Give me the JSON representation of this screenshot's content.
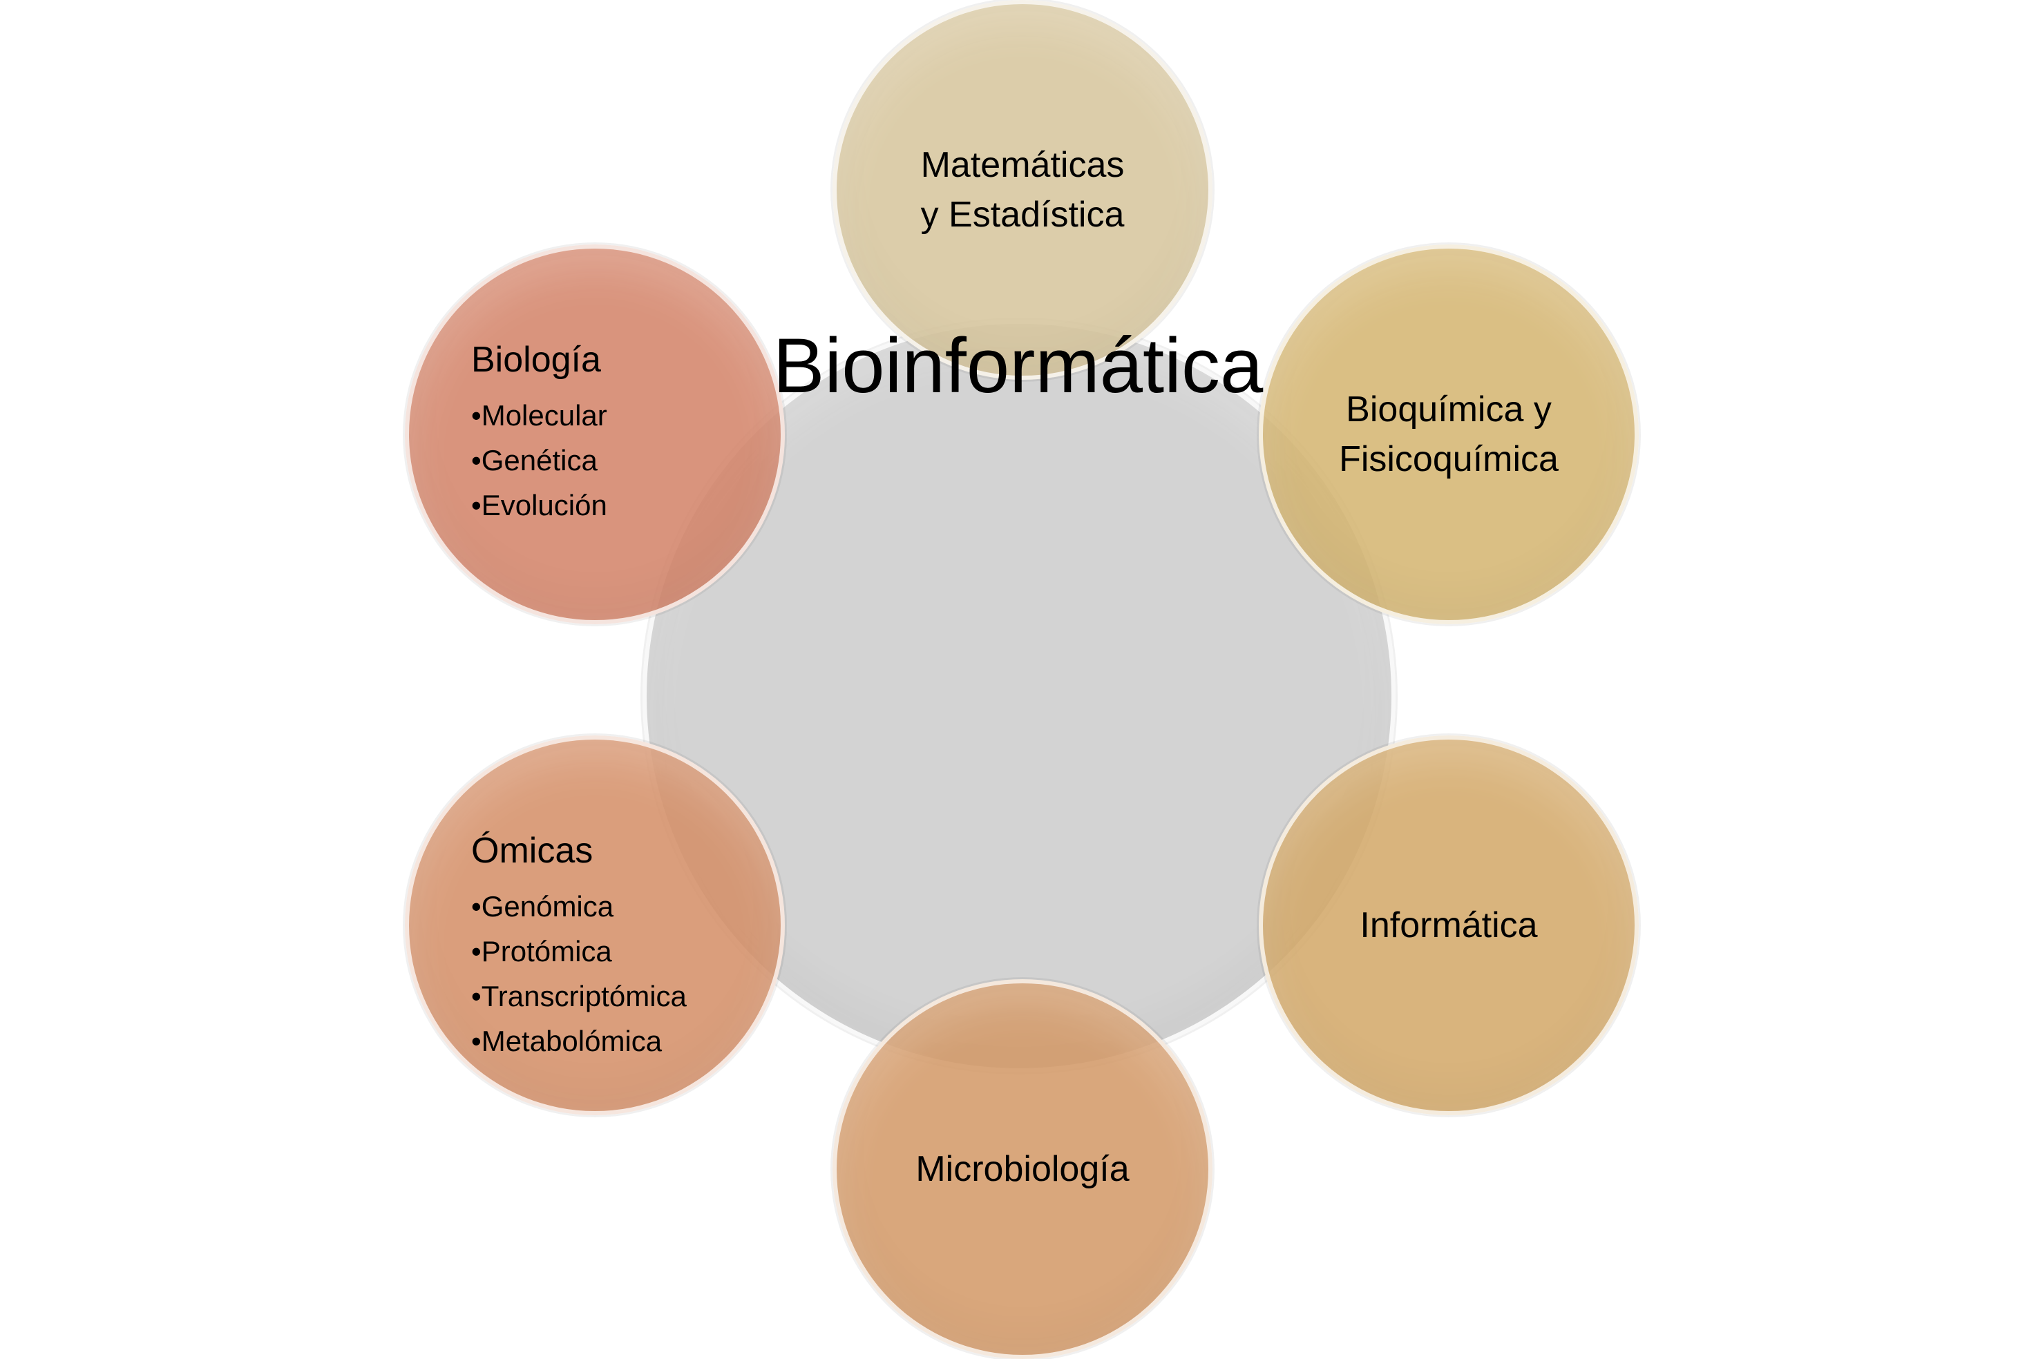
{
  "center": {
    "title": "Bioinformática"
  },
  "satellites": {
    "top": {
      "line1": "Matemáticas",
      "line2": "y Estadística"
    },
    "upper_right": {
      "line1": "Bioquímica y",
      "line2": "Fisicoquímica"
    },
    "lower_right": {
      "line1": "Informática"
    },
    "bottom": {
      "line1": "Microbiología"
    },
    "lower_left": {
      "title": "Ómicas",
      "items": [
        "•Genómica",
        "•Protómica",
        "•Transcriptómica",
        "•Metabolómica"
      ]
    },
    "upper_left": {
      "title": "Biología",
      "items": [
        "•Molecular",
        "•Genética",
        "•Evolución"
      ]
    }
  },
  "colors": {
    "center": "#cecece",
    "top": "#d6c59c",
    "upper_right": "#d4b470",
    "lower_right": "#d3a868",
    "bottom": "#d39967",
    "lower_left": "#d48e66",
    "upper_left": "#d38268"
  }
}
